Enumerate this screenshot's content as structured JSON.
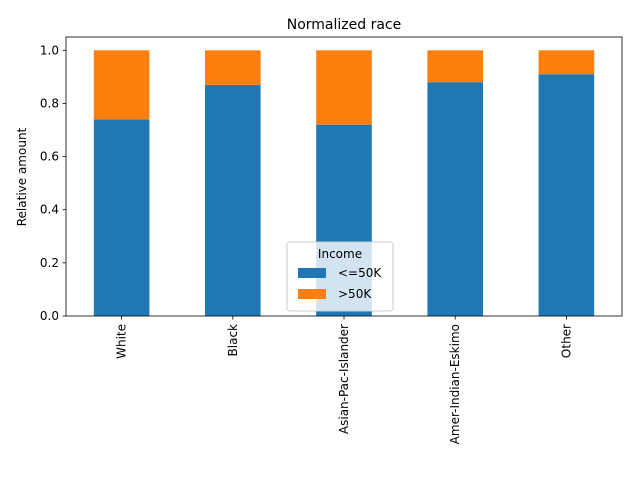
{
  "chart_data": {
    "type": "bar",
    "stacked": true,
    "title": "Normalized race",
    "xlabel": "",
    "ylabel": "Relative amount",
    "categories": [
      "White",
      "Black",
      "Asian-Pac-Islander",
      "Amer-Indian-Eskimo",
      "Other"
    ],
    "series": [
      {
        "name": "<=50K",
        "values": [
          0.74,
          0.87,
          0.72,
          0.88,
          0.91
        ],
        "color": "#1f77b4"
      },
      {
        "name": ">50K",
        "values": [
          0.26,
          0.13,
          0.28,
          0.12,
          0.09
        ],
        "color": "#ff7f0e"
      }
    ],
    "ylim": [
      0,
      1.05
    ],
    "yticks": [
      0.0,
      0.2,
      0.4,
      0.6,
      0.8,
      1.0
    ],
    "ytick_labels": [
      "0.0",
      "0.2",
      "0.4",
      "0.6",
      "0.8",
      "1.0"
    ],
    "grid": false,
    "legend": {
      "title": "Income",
      "placement": "bottom-center"
    }
  }
}
